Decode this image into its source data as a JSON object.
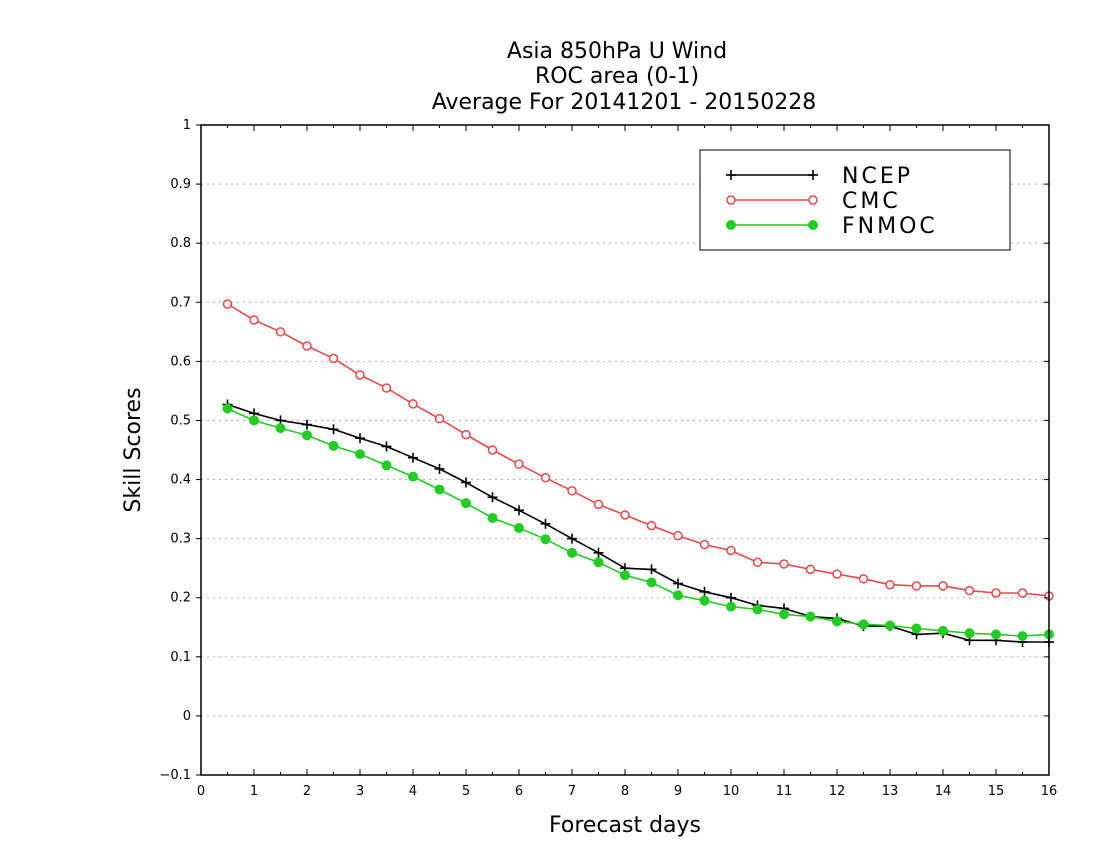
{
  "chart_data": {
    "type": "line",
    "title": [
      "Asia 850hPa U Wind",
      "ROC area (0-1)",
      "Average For 20141201 - 20150228"
    ],
    "xlabel": "Forecast days",
    "ylabel": "Skill Scores",
    "xlim": [
      0,
      16
    ],
    "ylim": [
      -0.1,
      1
    ],
    "x_ticks": [
      "0",
      "1",
      "2",
      "3",
      "4",
      "5",
      "6",
      "7",
      "8",
      "9",
      "10",
      "11",
      "12",
      "13",
      "14",
      "15",
      "16"
    ],
    "y_ticks": [
      "−0.1",
      "0",
      "0.1",
      "0.2",
      "0.3",
      "0.4",
      "0.5",
      "0.6",
      "0.7",
      "0.8",
      "0.9",
      "1"
    ],
    "grid": "horizontal dotted",
    "legend_position": "top-right",
    "x": [
      0.5,
      1,
      1.5,
      2,
      2.5,
      3,
      3.5,
      4,
      4.5,
      5,
      5.5,
      6,
      6.5,
      7,
      7.5,
      8,
      8.5,
      9,
      9.5,
      10,
      10.5,
      11,
      11.5,
      12,
      12.5,
      13,
      13.5,
      14,
      14.5,
      15,
      15.5,
      16
    ],
    "series": [
      {
        "name": "NCEP",
        "color": "#000000",
        "marker": "plus",
        "values": [
          0.527,
          0.512,
          0.5,
          0.493,
          0.485,
          0.47,
          0.456,
          0.437,
          0.418,
          0.395,
          0.37,
          0.348,
          0.325,
          0.3,
          0.276,
          0.25,
          0.248,
          0.224,
          0.21,
          0.2,
          0.187,
          0.182,
          0.168,
          0.165,
          0.152,
          0.152,
          0.138,
          0.14,
          0.128,
          0.128,
          0.125,
          0.125
        ]
      },
      {
        "name": "CMC",
        "color": "#e84848",
        "marker": "open-circle",
        "values": [
          0.697,
          0.67,
          0.65,
          0.626,
          0.605,
          0.577,
          0.555,
          0.528,
          0.503,
          0.476,
          0.45,
          0.426,
          0.403,
          0.381,
          0.358,
          0.34,
          0.322,
          0.305,
          0.29,
          0.28,
          0.26,
          0.257,
          0.248,
          0.24,
          0.232,
          0.222,
          0.22,
          0.22,
          0.212,
          0.208,
          0.208,
          0.203
        ]
      },
      {
        "name": "FNMOC",
        "color": "#22cc22",
        "marker": "filled-circle",
        "values": [
          0.52,
          0.5,
          0.487,
          0.475,
          0.457,
          0.443,
          0.424,
          0.405,
          0.383,
          0.36,
          0.335,
          0.318,
          0.299,
          0.276,
          0.26,
          0.238,
          0.226,
          0.204,
          0.195,
          0.185,
          0.18,
          0.172,
          0.168,
          0.16,
          0.155,
          0.153,
          0.148,
          0.144,
          0.14,
          0.138,
          0.135,
          0.138
        ]
      }
    ]
  }
}
